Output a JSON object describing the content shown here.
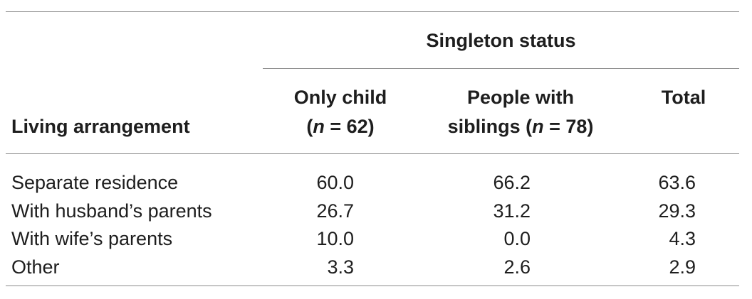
{
  "table": {
    "spanner_header": "Singleton status",
    "row_header": "Living arrangement",
    "col_only_child": {
      "line1": "Only child",
      "line2_open": "(",
      "line2_n": "n",
      "line2_rest": " = 62)"
    },
    "col_siblings": {
      "line1": "People with",
      "line2_pre": "siblings (",
      "line2_n": "n",
      "line2_rest": " = 78)"
    },
    "col_total": "Total",
    "rows": [
      {
        "label": "Separate residence",
        "only_child": "60.0",
        "siblings": "66.2",
        "total": "63.6"
      },
      {
        "label": "With husband’s parents",
        "only_child": "26.7",
        "siblings": "31.2",
        "total": "29.3"
      },
      {
        "label": "With wife’s parents",
        "only_child": "10.0",
        "siblings": "0.0",
        "total": "4.3"
      },
      {
        "label": "Other",
        "only_child": "3.3",
        "siblings": "2.6",
        "total": "2.9"
      }
    ]
  }
}
